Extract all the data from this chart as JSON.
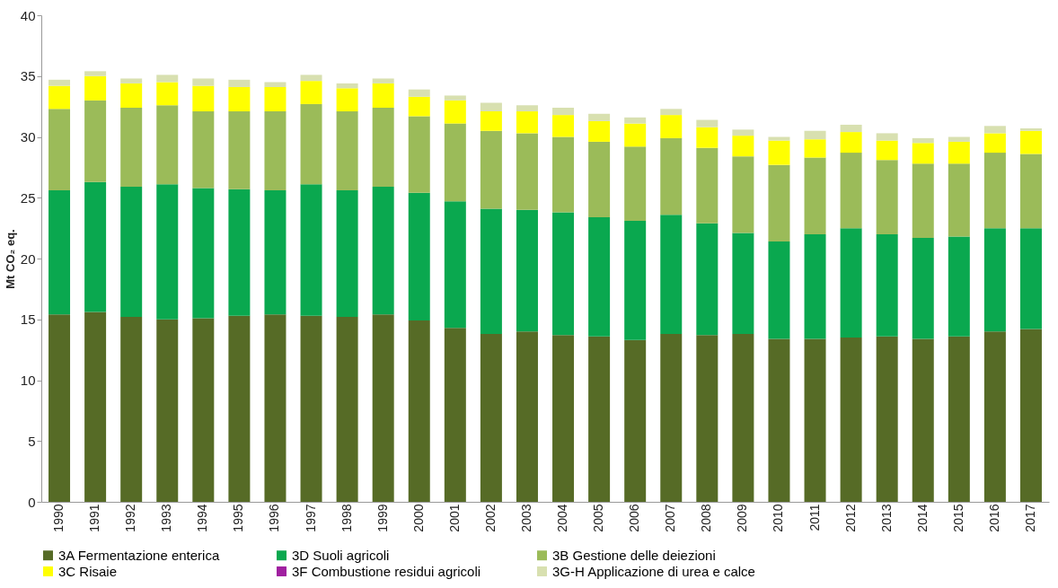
{
  "chart_data": {
    "type": "bar",
    "stacked": true,
    "ylabel": "Mt CO₂ eq.",
    "categories": [
      "1990",
      "1991",
      "1992",
      "1993",
      "1994",
      "1995",
      "1996",
      "1997",
      "1998",
      "1999",
      "2000",
      "2001",
      "2002",
      "2003",
      "2004",
      "2005",
      "2006",
      "2007",
      "2008",
      "2009",
      "2010",
      "2011",
      "2012",
      "2013",
      "2014",
      "2015",
      "2016",
      "2017"
    ],
    "ylim": [
      0,
      40
    ],
    "yticks": [
      0,
      5,
      10,
      15,
      20,
      25,
      30,
      35,
      40
    ],
    "grid": false,
    "legend": "bottom",
    "series": [
      {
        "name": "3A Fermentazione enterica",
        "color": "#566b26",
        "values": [
          15.4,
          15.6,
          15.2,
          15.0,
          15.1,
          15.3,
          15.4,
          15.3,
          15.2,
          15.4,
          14.9,
          14.3,
          13.8,
          14.0,
          13.7,
          13.6,
          13.3,
          13.8,
          13.7,
          13.8,
          13.4,
          13.4,
          13.5,
          13.6,
          13.4,
          13.6,
          14.0,
          14.2
        ]
      },
      {
        "name": "3D Suoli agricoli",
        "color": "#0aa84f",
        "values": [
          10.2,
          10.7,
          10.7,
          11.1,
          10.7,
          10.4,
          10.2,
          10.8,
          10.4,
          10.5,
          10.5,
          10.4,
          10.3,
          10.0,
          10.1,
          9.8,
          9.8,
          9.8,
          9.2,
          8.3,
          8.0,
          8.6,
          9.0,
          8.4,
          8.3,
          8.2,
          8.5,
          8.3
        ]
      },
      {
        "name": "3B Gestione delle deiezioni",
        "color": "#9bbb59",
        "values": [
          6.7,
          6.7,
          6.5,
          6.5,
          6.3,
          6.4,
          6.5,
          6.6,
          6.5,
          6.5,
          6.3,
          6.4,
          6.4,
          6.3,
          6.2,
          6.2,
          6.1,
          6.3,
          6.2,
          6.3,
          6.3,
          6.3,
          6.2,
          6.1,
          6.1,
          6.0,
          6.2,
          6.1
        ]
      },
      {
        "name": "3C Risaie",
        "color": "#ffff00",
        "values": [
          1.9,
          2.0,
          2.0,
          1.9,
          2.1,
          2.0,
          2.0,
          1.9,
          1.9,
          2.0,
          1.6,
          1.9,
          1.6,
          1.8,
          1.8,
          1.7,
          1.9,
          1.9,
          1.7,
          1.7,
          2.0,
          1.5,
          1.7,
          1.6,
          1.7,
          1.8,
          1.6,
          1.9
        ]
      },
      {
        "name": "3F Combustione residui agricoli",
        "color": "#a020a0",
        "values": [
          0,
          0,
          0,
          0,
          0,
          0,
          0,
          0,
          0,
          0,
          0,
          0,
          0,
          0,
          0,
          0,
          0,
          0,
          0,
          0,
          0,
          0,
          0,
          0,
          0,
          0,
          0,
          0
        ]
      },
      {
        "name": "3G-H Applicazione di urea e calce",
        "color": "#d8e0b0",
        "values": [
          0.5,
          0.4,
          0.4,
          0.6,
          0.6,
          0.6,
          0.4,
          0.5,
          0.4,
          0.4,
          0.6,
          0.4,
          0.7,
          0.5,
          0.6,
          0.6,
          0.5,
          0.5,
          0.6,
          0.5,
          0.3,
          0.7,
          0.6,
          0.6,
          0.4,
          0.4,
          0.6,
          0.2
        ]
      }
    ]
  }
}
